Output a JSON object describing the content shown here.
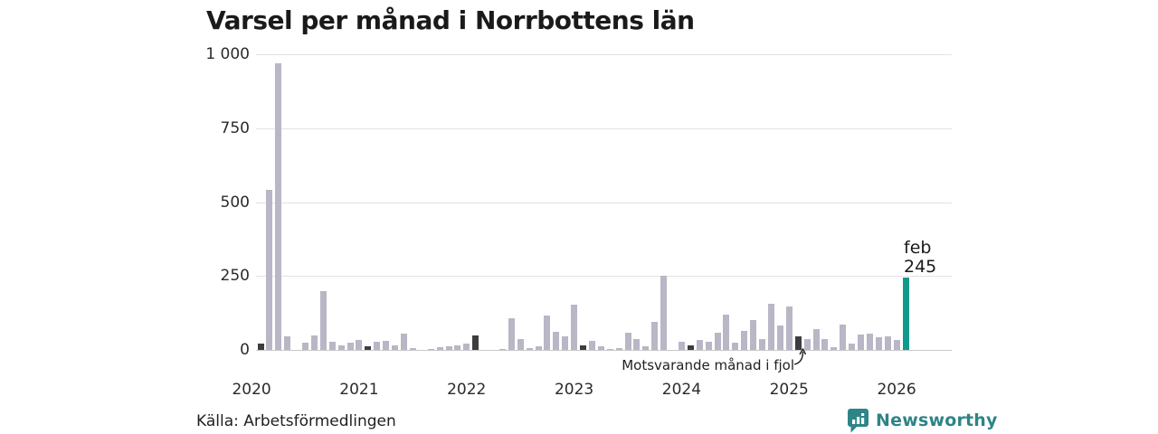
{
  "title": "Varsel per månad i Norrbottens län",
  "source": "Källa: Arbetsförmedlingen",
  "branding": {
    "name": "Newsworthy"
  },
  "annotation": {
    "text": "Motsvarande månad i fjol"
  },
  "current_label": {
    "line1": "feb",
    "line2": "245"
  },
  "colors": {
    "bar_regular": "#b9b6c6",
    "bar_prev_feb": "#3d3d3d",
    "bar_current": "#12998b",
    "brand_teal": "#2e8486",
    "gridline": "#e2e2e2"
  },
  "chart_data": {
    "type": "bar",
    "title": "Varsel per månad i Norrbottens län",
    "xlabel": "",
    "ylabel": "",
    "ylim": [
      0,
      1000
    ],
    "grid": true,
    "y_ticks": [
      {
        "value": 0,
        "label": "0"
      },
      {
        "value": 250,
        "label": "250"
      },
      {
        "value": 500,
        "label": "500"
      },
      {
        "value": 750,
        "label": "750"
      },
      {
        "value": 1000,
        "label": "1 000"
      }
    ],
    "x_year_ticks": [
      {
        "label": "2020",
        "month_index": -1
      },
      {
        "label": "2021",
        "month_index": 11
      },
      {
        "label": "2022",
        "month_index": 23
      },
      {
        "label": "2023",
        "month_index": 35
      },
      {
        "label": "2024",
        "month_index": 47
      },
      {
        "label": "2025",
        "month_index": 59
      },
      {
        "label": "2026",
        "month_index": 71
      }
    ],
    "series_note": "dark bars = same month previous years (feb), teal bar = current month",
    "points": [
      {
        "month": "feb 2020",
        "value": 20,
        "role": "prev-feb"
      },
      {
        "month": "mar 2020",
        "value": 540,
        "role": "normal"
      },
      {
        "month": "apr 2020",
        "value": 970,
        "role": "normal"
      },
      {
        "month": "maj 2020",
        "value": 47,
        "role": "normal"
      },
      {
        "month": "jun 2020",
        "value": 0,
        "role": "normal"
      },
      {
        "month": "jul 2020",
        "value": 24,
        "role": "normal"
      },
      {
        "month": "aug 2020",
        "value": 48,
        "role": "normal"
      },
      {
        "month": "sep 2020",
        "value": 200,
        "role": "normal"
      },
      {
        "month": "okt 2020",
        "value": 29,
        "role": "normal"
      },
      {
        "month": "nov 2020",
        "value": 15,
        "role": "normal"
      },
      {
        "month": "dec 2020",
        "value": 24,
        "role": "normal"
      },
      {
        "month": "jan 2021",
        "value": 33,
        "role": "normal"
      },
      {
        "month": "feb 2021",
        "value": 12,
        "role": "prev-feb"
      },
      {
        "month": "mar 2021",
        "value": 28,
        "role": "normal"
      },
      {
        "month": "apr 2021",
        "value": 30,
        "role": "normal"
      },
      {
        "month": "maj 2021",
        "value": 15,
        "role": "normal"
      },
      {
        "month": "jun 2021",
        "value": 55,
        "role": "normal"
      },
      {
        "month": "jul 2021",
        "value": 6,
        "role": "normal"
      },
      {
        "month": "aug 2021",
        "value": 0,
        "role": "normal"
      },
      {
        "month": "sep 2021",
        "value": 2,
        "role": "normal"
      },
      {
        "month": "okt 2021",
        "value": 8,
        "role": "normal"
      },
      {
        "month": "nov 2021",
        "value": 12,
        "role": "normal"
      },
      {
        "month": "dec 2021",
        "value": 14,
        "role": "normal"
      },
      {
        "month": "jan 2022",
        "value": 20,
        "role": "normal"
      },
      {
        "month": "feb 2022",
        "value": 48,
        "role": "prev-feb"
      },
      {
        "month": "mar 2022",
        "value": 0,
        "role": "normal"
      },
      {
        "month": "apr 2022",
        "value": 0,
        "role": "normal"
      },
      {
        "month": "maj 2022",
        "value": 2,
        "role": "normal"
      },
      {
        "month": "jun 2022",
        "value": 106,
        "role": "normal"
      },
      {
        "month": "jul 2022",
        "value": 38,
        "role": "normal"
      },
      {
        "month": "aug 2022",
        "value": 7,
        "role": "normal"
      },
      {
        "month": "sep 2022",
        "value": 12,
        "role": "normal"
      },
      {
        "month": "okt 2022",
        "value": 116,
        "role": "normal"
      },
      {
        "month": "nov 2022",
        "value": 62,
        "role": "normal"
      },
      {
        "month": "dec 2022",
        "value": 46,
        "role": "normal"
      },
      {
        "month": "jan 2023",
        "value": 154,
        "role": "normal"
      },
      {
        "month": "feb 2023",
        "value": 15,
        "role": "prev-feb"
      },
      {
        "month": "mar 2023",
        "value": 30,
        "role": "normal"
      },
      {
        "month": "apr 2023",
        "value": 12,
        "role": "normal"
      },
      {
        "month": "maj 2023",
        "value": 3,
        "role": "normal"
      },
      {
        "month": "jun 2023",
        "value": 5,
        "role": "normal"
      },
      {
        "month": "jul 2023",
        "value": 58,
        "role": "normal"
      },
      {
        "month": "aug 2023",
        "value": 36,
        "role": "normal"
      },
      {
        "month": "sep 2023",
        "value": 12,
        "role": "normal"
      },
      {
        "month": "okt 2023",
        "value": 95,
        "role": "normal"
      },
      {
        "month": "nov 2023",
        "value": 250,
        "role": "normal"
      },
      {
        "month": "dec 2023",
        "value": 0,
        "role": "normal"
      },
      {
        "month": "jan 2024",
        "value": 28,
        "role": "normal"
      },
      {
        "month": "feb 2024",
        "value": 15,
        "role": "prev-feb"
      },
      {
        "month": "mar 2024",
        "value": 34,
        "role": "normal"
      },
      {
        "month": "apr 2024",
        "value": 27,
        "role": "normal"
      },
      {
        "month": "maj 2024",
        "value": 59,
        "role": "normal"
      },
      {
        "month": "jun 2024",
        "value": 120,
        "role": "normal"
      },
      {
        "month": "jul 2024",
        "value": 25,
        "role": "normal"
      },
      {
        "month": "aug 2024",
        "value": 65,
        "role": "normal"
      },
      {
        "month": "sep 2024",
        "value": 100,
        "role": "normal"
      },
      {
        "month": "okt 2024",
        "value": 36,
        "role": "normal"
      },
      {
        "month": "nov 2024",
        "value": 155,
        "role": "normal"
      },
      {
        "month": "dec 2024",
        "value": 82,
        "role": "normal"
      },
      {
        "month": "jan 2025",
        "value": 148,
        "role": "normal"
      },
      {
        "month": "feb 2025",
        "value": 45,
        "role": "prev-feb"
      },
      {
        "month": "mar 2025",
        "value": 38,
        "role": "normal"
      },
      {
        "month": "apr 2025",
        "value": 70,
        "role": "normal"
      },
      {
        "month": "maj 2025",
        "value": 38,
        "role": "normal"
      },
      {
        "month": "jun 2025",
        "value": 8,
        "role": "normal"
      },
      {
        "month": "jul 2025",
        "value": 85,
        "role": "normal"
      },
      {
        "month": "aug 2025",
        "value": 20,
        "role": "normal"
      },
      {
        "month": "sep 2025",
        "value": 52,
        "role": "normal"
      },
      {
        "month": "okt 2025",
        "value": 55,
        "role": "normal"
      },
      {
        "month": "nov 2025",
        "value": 42,
        "role": "normal"
      },
      {
        "month": "dec 2025",
        "value": 45,
        "role": "normal"
      },
      {
        "month": "jan 2026",
        "value": 35,
        "role": "normal"
      },
      {
        "month": "feb 2026",
        "value": 245,
        "role": "current"
      }
    ]
  }
}
